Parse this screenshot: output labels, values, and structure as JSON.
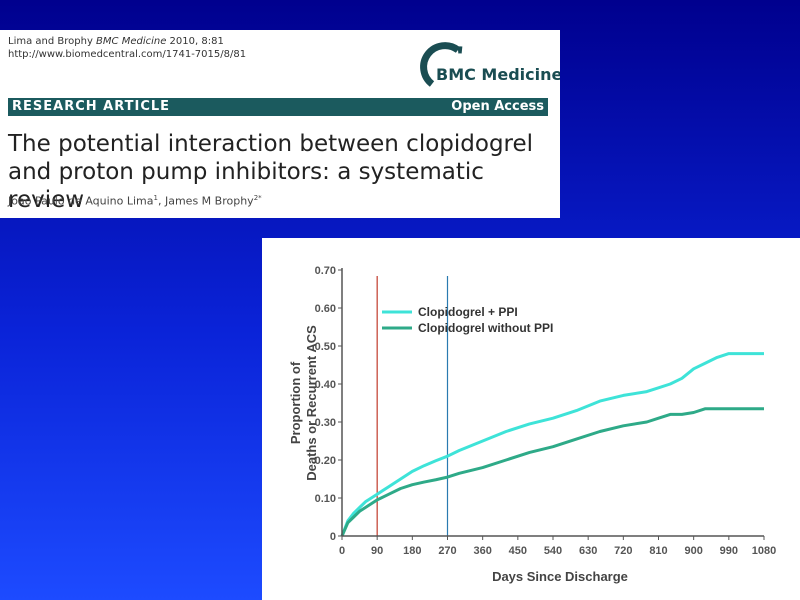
{
  "article": {
    "citation_authors": "Lima and Brophy ",
    "citation_journal": "BMC Medicine",
    "citation_volume": " 2010, 8:81",
    "url": "http://www.biomedcentral.com/1741-7015/8/81",
    "logo_text": "BMC Medicine",
    "article_type": "RESEARCH ARTICLE",
    "access": "Open Access",
    "title_line1": "The potential interaction between clopidogrel",
    "title_line2": "and proton pump inhibitors: a systematic review",
    "author1": "Joao Paulo de Aquino Lima",
    "author1_sup": "1",
    "author2": ", James M Brophy",
    "author2_sup": "2*",
    "colors": {
      "banner": "#1b5a5e",
      "logo": "#1a4d52"
    }
  },
  "chart_data": {
    "type": "line",
    "xlabel": "Days Since Discharge",
    "ylabel_line1": "Proportion of",
    "ylabel_line2": "Deaths or Recurrent ACS",
    "xlim": [
      0,
      1080
    ],
    "ylim": [
      0,
      0.7
    ],
    "x_ticks": [
      0,
      90,
      180,
      270,
      360,
      450,
      540,
      630,
      720,
      810,
      900,
      990,
      1080
    ],
    "y_ticks": [
      "0",
      "0.10",
      "0.20",
      "0.30",
      "0.40",
      "0.50",
      "0.60",
      "0.70"
    ],
    "y_tick_values": [
      0,
      0.1,
      0.2,
      0.3,
      0.4,
      0.5,
      0.6,
      0.7
    ],
    "vlines": [
      {
        "x": 90,
        "color": "#c0392b"
      },
      {
        "x": 270,
        "color": "#2a7ab0"
      }
    ],
    "series": [
      {
        "name": "Clopidogrel + PPI",
        "color": "#3ee3d8",
        "x": [
          0,
          15,
          30,
          45,
          60,
          90,
          120,
          150,
          180,
          210,
          240,
          270,
          300,
          360,
          420,
          480,
          540,
          600,
          660,
          720,
          780,
          810,
          840,
          870,
          900,
          930,
          960,
          990,
          1000,
          1080
        ],
        "y": [
          0,
          0.04,
          0.06,
          0.075,
          0.09,
          0.11,
          0.13,
          0.15,
          0.17,
          0.185,
          0.198,
          0.21,
          0.225,
          0.25,
          0.275,
          0.295,
          0.31,
          0.33,
          0.355,
          0.37,
          0.38,
          0.39,
          0.4,
          0.415,
          0.44,
          0.455,
          0.47,
          0.48,
          0.48,
          0.48
        ]
      },
      {
        "name": "Clopidogrel without PPI",
        "color": "#2eaa88",
        "x": [
          0,
          15,
          30,
          45,
          60,
          90,
          120,
          150,
          180,
          210,
          240,
          270,
          300,
          360,
          420,
          480,
          540,
          600,
          660,
          720,
          780,
          810,
          840,
          870,
          900,
          930,
          990,
          1080
        ],
        "y": [
          0,
          0.035,
          0.05,
          0.065,
          0.075,
          0.095,
          0.11,
          0.125,
          0.135,
          0.142,
          0.148,
          0.155,
          0.165,
          0.18,
          0.2,
          0.22,
          0.235,
          0.255,
          0.275,
          0.29,
          0.3,
          0.31,
          0.32,
          0.32,
          0.325,
          0.335,
          0.335,
          0.335
        ]
      }
    ],
    "legend_placement": "top-left"
  }
}
